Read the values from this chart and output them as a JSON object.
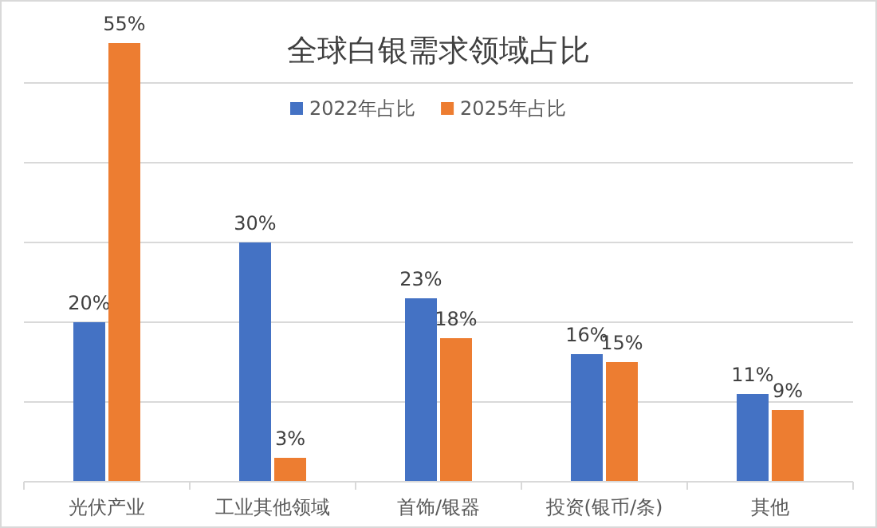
{
  "chart_data": {
    "type": "bar",
    "title": "全球白银需求领域占比",
    "categories": [
      "光伏产业",
      "工业其他领域",
      "首饰/银器",
      "投资(银币/条)",
      "其他"
    ],
    "series": [
      {
        "name": "2022年占比",
        "color": "#4472c4",
        "values": [
          20,
          30,
          23,
          16,
          11
        ],
        "value_labels": [
          "20%",
          "30%",
          "23%",
          "16%",
          "11%"
        ]
      },
      {
        "name": "2025年占比",
        "color": "#ed7d31",
        "values": [
          55,
          3,
          18,
          15,
          9
        ],
        "value_labels": [
          "55%",
          "3%",
          "18%",
          "15%",
          "9%"
        ]
      }
    ],
    "ylim": [
      0,
      60
    ],
    "yticks": [
      {
        "value": 0,
        "label": null
      },
      {
        "value": 10,
        "label": null
      },
      {
        "value": 20,
        "label": null
      },
      {
        "value": 30,
        "label": null
      },
      {
        "value": 40,
        "label": null
      },
      {
        "value": 50,
        "label": null
      }
    ],
    "grid": "y",
    "legend": "top",
    "tick_labels": "x"
  }
}
